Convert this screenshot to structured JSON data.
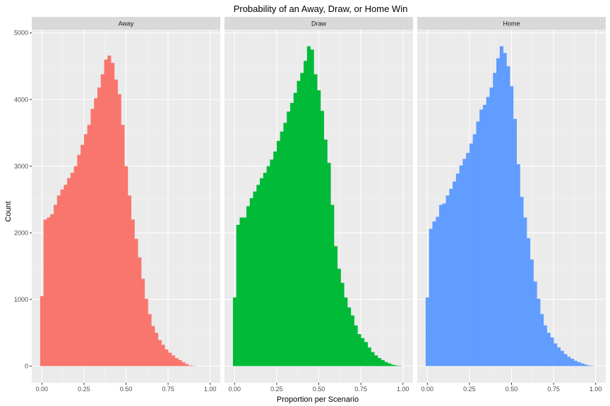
{
  "chart_data": {
    "type": "bar",
    "title": "Probability of an Away, Draw, or Home Win",
    "xlabel": "Proportion per Scenario",
    "ylabel": "Count",
    "xlim": [
      -0.06,
      1.06
    ],
    "ylim": [
      -250,
      5050
    ],
    "x_ticks": [
      0,
      0.25,
      0.5,
      0.75,
      1
    ],
    "x_tick_labels": [
      "0.00",
      "0.25",
      "0.50",
      "0.75",
      "1.00"
    ],
    "y_ticks": [
      0,
      1000,
      2000,
      3000,
      4000,
      5000
    ],
    "y_tick_labels": [
      "0",
      "1000",
      "2000",
      "3000",
      "4000",
      "5000"
    ],
    "bin_width": 0.02,
    "bin_start": -0.01,
    "grid": true,
    "legend": "none",
    "panels": [
      {
        "name": "Away",
        "color": "#F8766D",
        "values": [
          1050,
          2200,
          2230,
          2280,
          2420,
          2560,
          2650,
          2720,
          2820,
          2900,
          3000,
          3170,
          3320,
          3480,
          3620,
          3860,
          4020,
          4180,
          4380,
          4600,
          4660,
          4550,
          4300,
          4080,
          3620,
          3000,
          2560,
          2200,
          1910,
          1630,
          1310,
          1010,
          780,
          600,
          500,
          390,
          320,
          250,
          200,
          160,
          120,
          90,
          60,
          30,
          10,
          5,
          0,
          0,
          0,
          0,
          0
        ]
      },
      {
        "name": "Draw",
        "color": "#00BA38",
        "values": [
          1030,
          2120,
          2230,
          2230,
          2400,
          2520,
          2620,
          2720,
          2820,
          2900,
          3000,
          3100,
          3220,
          3380,
          3520,
          3650,
          3820,
          3950,
          4100,
          4280,
          4400,
          4580,
          4800,
          4750,
          4380,
          4140,
          3830,
          3400,
          3050,
          2420,
          1800,
          1460,
          1250,
          1030,
          880,
          760,
          610,
          480,
          420,
          360,
          280,
          210,
          160,
          120,
          90,
          60,
          40,
          20,
          10,
          5,
          0
        ]
      },
      {
        "name": "Home",
        "color": "#619CFF",
        "values": [
          1030,
          2060,
          2170,
          2240,
          2420,
          2440,
          2560,
          2660,
          2770,
          2890,
          3010,
          3110,
          3200,
          3340,
          3480,
          3670,
          3850,
          3920,
          4040,
          4180,
          4400,
          4620,
          4800,
          4700,
          4500,
          4200,
          3710,
          3030,
          2540,
          2230,
          1920,
          1600,
          1270,
          1010,
          780,
          610,
          500,
          430,
          340,
          280,
          230,
          180,
          140,
          110,
          80,
          60,
          40,
          25,
          10,
          5,
          0
        ]
      }
    ]
  }
}
